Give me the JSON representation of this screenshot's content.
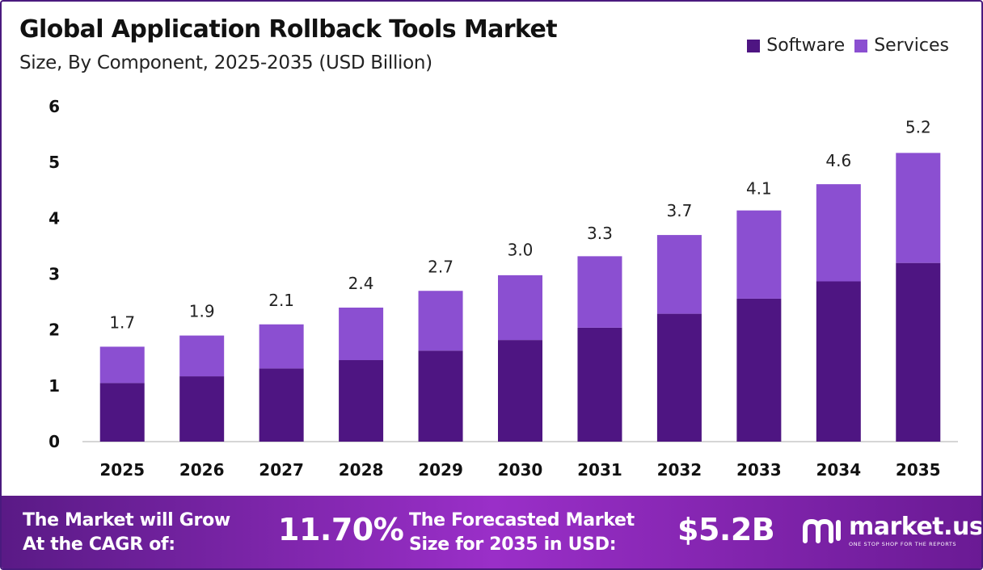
{
  "title": "Global Application Rollback Tools Market",
  "subtitle": "Size, By Component, 2025-2035 (USD Billion)",
  "legend": [
    {
      "label": "Software",
      "color": "#4e1582"
    },
    {
      "label": "Services",
      "color": "#8b4fd1"
    }
  ],
  "chart_data": {
    "type": "bar",
    "stacked": true,
    "categories": [
      "2025",
      "2026",
      "2027",
      "2028",
      "2029",
      "2030",
      "2031",
      "2032",
      "2033",
      "2034",
      "2035"
    ],
    "series": [
      {
        "name": "Software",
        "color": "#4e1582",
        "values": [
          1.05,
          1.17,
          1.31,
          1.46,
          1.63,
          1.82,
          2.04,
          2.29,
          2.56,
          2.87,
          3.2
        ]
      },
      {
        "name": "Services",
        "color": "#8b4fd1",
        "values": [
          0.65,
          0.73,
          0.79,
          0.94,
          1.07,
          1.16,
          1.28,
          1.41,
          1.58,
          1.74,
          1.97
        ]
      }
    ],
    "totals": [
      1.7,
      1.9,
      2.1,
      2.4,
      2.7,
      3.0,
      3.3,
      3.7,
      4.1,
      4.6,
      5.2
    ],
    "total_labels": [
      "1.7",
      "1.9",
      "2.1",
      "2.4",
      "2.7",
      "3.0",
      "3.3",
      "3.7",
      "4.1",
      "4.6",
      "5.2"
    ],
    "ylim": [
      0,
      6
    ],
    "yticks": [
      0,
      1,
      2,
      3,
      4,
      5,
      6
    ],
    "xlabel": "",
    "ylabel": "",
    "grid": false,
    "legend_position": "top-right"
  },
  "footer": {
    "cagr_label_line1": "The Market will Grow",
    "cagr_label_line2": "At the CAGR of:",
    "cagr_value": "11.70%",
    "forecast_label_line1": "The Forecasted Market",
    "forecast_label_line2": "Size for 2035 in USD:",
    "forecast_value": "$5.2B",
    "brand_name": "market.us",
    "brand_tagline": "ONE STOP SHOP FOR THE REPORTS"
  }
}
